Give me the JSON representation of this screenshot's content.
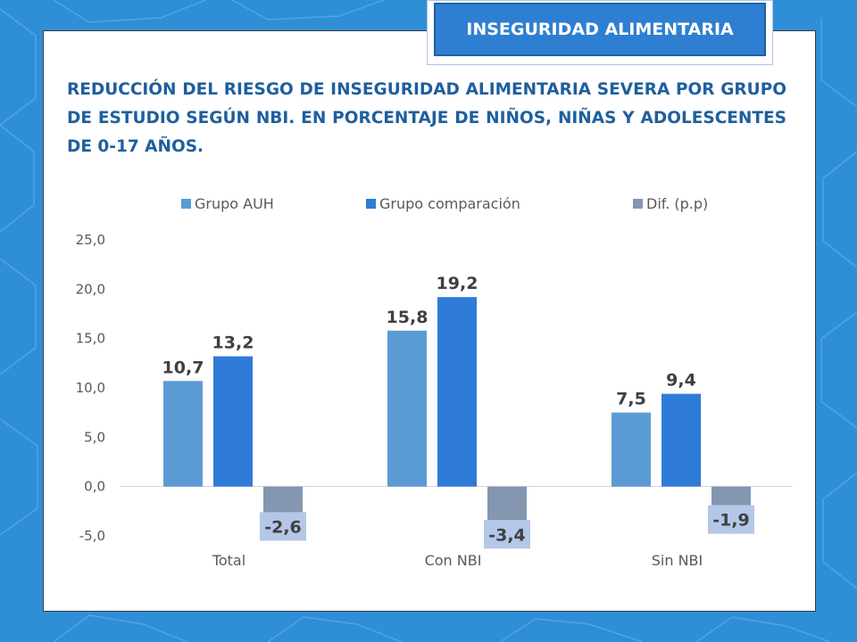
{
  "header": {
    "tag_label": "INSEGURIDAD ALIMENTARIA",
    "title": "REDUCCIÓN DEL RIESGO DE INSEGURIDAD ALIMENTARIA SEVERA POR GRUPO DE ESTUDIO SEGÚN NBI. EN PORCENTAJE DE NIÑOS, NIÑAS Y ADOLESCENTES DE 0-17 AÑOS."
  },
  "colors": {
    "background": "#2e8fd6",
    "accent": "#2e7fd2",
    "title": "#1f5f9e"
  },
  "chart_data": {
    "type": "bar",
    "categories": [
      "Total",
      "Con NBI",
      "Sin NBI"
    ],
    "series": [
      {
        "name": "Grupo AUH",
        "values": [
          10.7,
          15.8,
          7.5
        ],
        "labels": [
          "10,7",
          "15,8",
          "7,5"
        ],
        "color": "#5b9bd5"
      },
      {
        "name": "Grupo comparación",
        "values": [
          13.2,
          19.2,
          9.4
        ],
        "labels": [
          "13,2",
          "19,2",
          "9,4"
        ],
        "color": "#2f7bd8"
      },
      {
        "name": "Dif. (p.p)",
        "values": [
          -2.6,
          -3.4,
          -1.9
        ],
        "labels": [
          "-2,6",
          "-3,4",
          "-1,9"
        ],
        "color": "#8496b0"
      }
    ],
    "yticks": [
      "25,0",
      "20,0",
      "15,0",
      "10,0",
      "5,0",
      "0,0",
      "-5,0"
    ],
    "ylim": [
      -5,
      25
    ],
    "legend_position": "top",
    "grid": false
  }
}
